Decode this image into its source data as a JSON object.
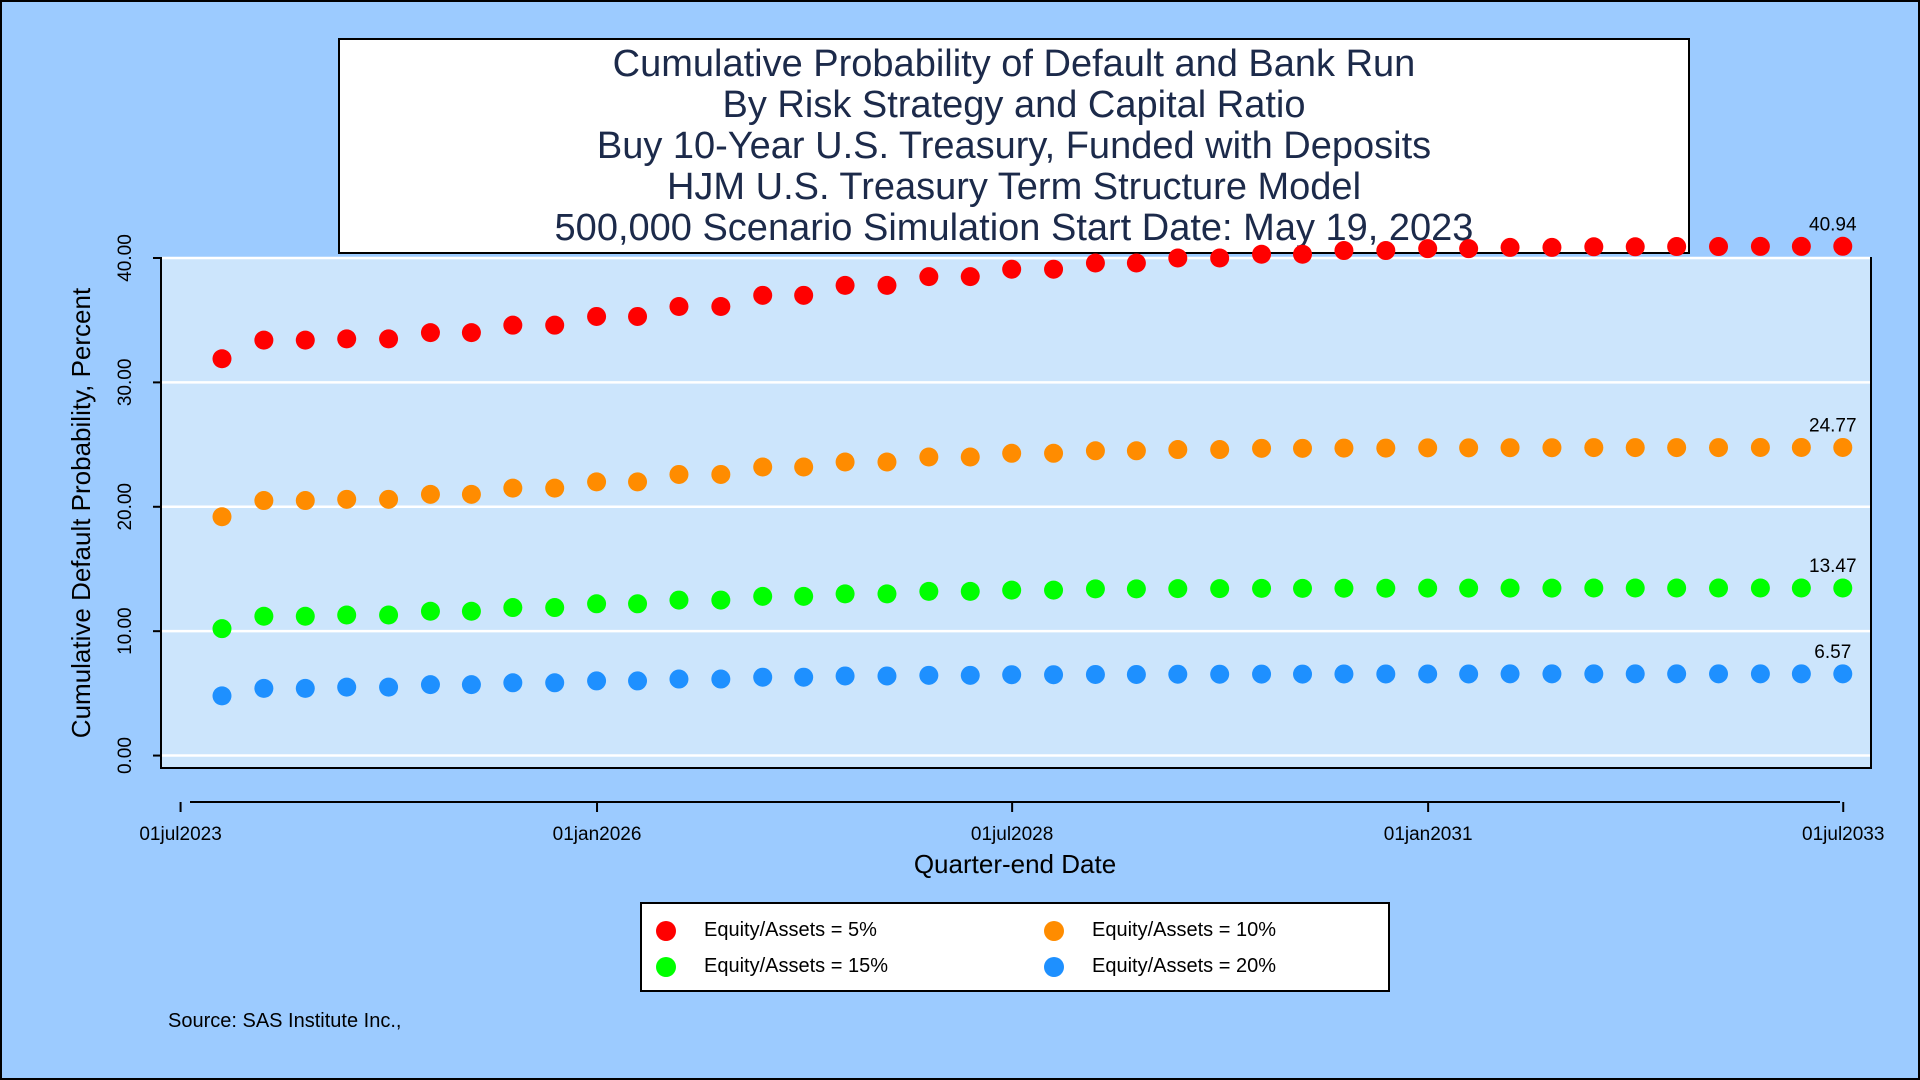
{
  "chart_data": {
    "type": "scatter",
    "title_lines": [
      "Cumulative Probability of Default and Bank Run",
      "By Risk Strategy and Capital Ratio",
      "Buy 10-Year U.S. Treasury, Funded with Deposits",
      "HJM U.S. Treasury Term Structure Model",
      "500,000 Scenario Simulation Start Date: May 19, 2023"
    ],
    "xlabel": "Quarter-end Date",
    "ylabel": "Cumulative Default Probability, Percent",
    "ylim": [
      -1,
      40
    ],
    "y_ticks": [
      "0.00",
      "10.00",
      "20.00",
      "30.00",
      "40.00"
    ],
    "x_ticks": [
      "01jul2023",
      "01jan2026",
      "01jul2028",
      "01jan2031",
      "01jul2033"
    ],
    "x_range": [
      "2023-05-19",
      "2033-08-31"
    ],
    "grid": "horizontal",
    "x": [
      "2023-09-30",
      "2023-12-31",
      "2024-03-31",
      "2024-06-30",
      "2024-09-30",
      "2024-12-31",
      "2025-03-31",
      "2025-06-30",
      "2025-09-30",
      "2025-12-31",
      "2026-03-31",
      "2026-06-30",
      "2026-09-30",
      "2026-12-31",
      "2027-03-31",
      "2027-06-30",
      "2027-09-30",
      "2027-12-31",
      "2028-03-31",
      "2028-06-30",
      "2028-09-30",
      "2028-12-31",
      "2029-03-31",
      "2029-06-30",
      "2029-09-30",
      "2029-12-31",
      "2030-03-31",
      "2030-06-30",
      "2030-09-30",
      "2030-12-31",
      "2031-03-31",
      "2031-06-30",
      "2031-09-30",
      "2031-12-31",
      "2032-03-31",
      "2032-06-30",
      "2032-09-30",
      "2032-12-31",
      "2033-03-31",
      "2033-06-30"
    ],
    "series": [
      {
        "name": "Equity/Assets = 5%",
        "color": "#ff0000",
        "end_label": "40.94",
        "values": [
          31.9,
          33.4,
          33.4,
          33.5,
          33.5,
          34.0,
          34.0,
          34.6,
          34.6,
          35.3,
          35.3,
          36.1,
          36.1,
          37.0,
          37.0,
          37.8,
          37.8,
          38.5,
          38.5,
          39.1,
          39.1,
          39.6,
          39.6,
          40.0,
          40.0,
          40.3,
          40.3,
          40.6,
          40.6,
          40.75,
          40.75,
          40.85,
          40.85,
          40.9,
          40.9,
          40.92,
          40.92,
          40.93,
          40.93,
          40.94
        ]
      },
      {
        "name": "Equity/Assets = 10%",
        "color": "#ff8c00",
        "end_label": "24.77",
        "values": [
          19.2,
          20.5,
          20.5,
          20.6,
          20.6,
          21.0,
          21.0,
          21.5,
          21.5,
          22.0,
          22.0,
          22.6,
          22.6,
          23.2,
          23.2,
          23.6,
          23.6,
          24.0,
          24.0,
          24.3,
          24.3,
          24.5,
          24.5,
          24.6,
          24.6,
          24.7,
          24.7,
          24.72,
          24.72,
          24.74,
          24.74,
          24.75,
          24.75,
          24.76,
          24.76,
          24.76,
          24.76,
          24.77,
          24.77,
          24.77
        ]
      },
      {
        "name": "Equity/Assets = 15%",
        "color": "#00ff00",
        "end_label": "13.47",
        "values": [
          10.2,
          11.2,
          11.2,
          11.3,
          11.3,
          11.6,
          11.6,
          11.9,
          11.9,
          12.2,
          12.2,
          12.5,
          12.5,
          12.8,
          12.8,
          13.0,
          13.0,
          13.2,
          13.2,
          13.3,
          13.3,
          13.4,
          13.4,
          13.42,
          13.42,
          13.44,
          13.44,
          13.45,
          13.45,
          13.46,
          13.46,
          13.46,
          13.46,
          13.47,
          13.47,
          13.47,
          13.47,
          13.47,
          13.47,
          13.47
        ]
      },
      {
        "name": "Equity/Assets = 20%",
        "color": "#1e90ff",
        "end_label": "6.57",
        "values": [
          4.8,
          5.4,
          5.4,
          5.5,
          5.5,
          5.7,
          5.7,
          5.85,
          5.85,
          6.0,
          6.0,
          6.15,
          6.15,
          6.3,
          6.3,
          6.4,
          6.4,
          6.45,
          6.45,
          6.5,
          6.5,
          6.52,
          6.52,
          6.54,
          6.54,
          6.55,
          6.55,
          6.56,
          6.56,
          6.56,
          6.56,
          6.57,
          6.57,
          6.57,
          6.57,
          6.57,
          6.57,
          6.57,
          6.57,
          6.57
        ]
      }
    ],
    "legend_position": "bottom-center"
  },
  "source": "Source: SAS Institute Inc.,"
}
